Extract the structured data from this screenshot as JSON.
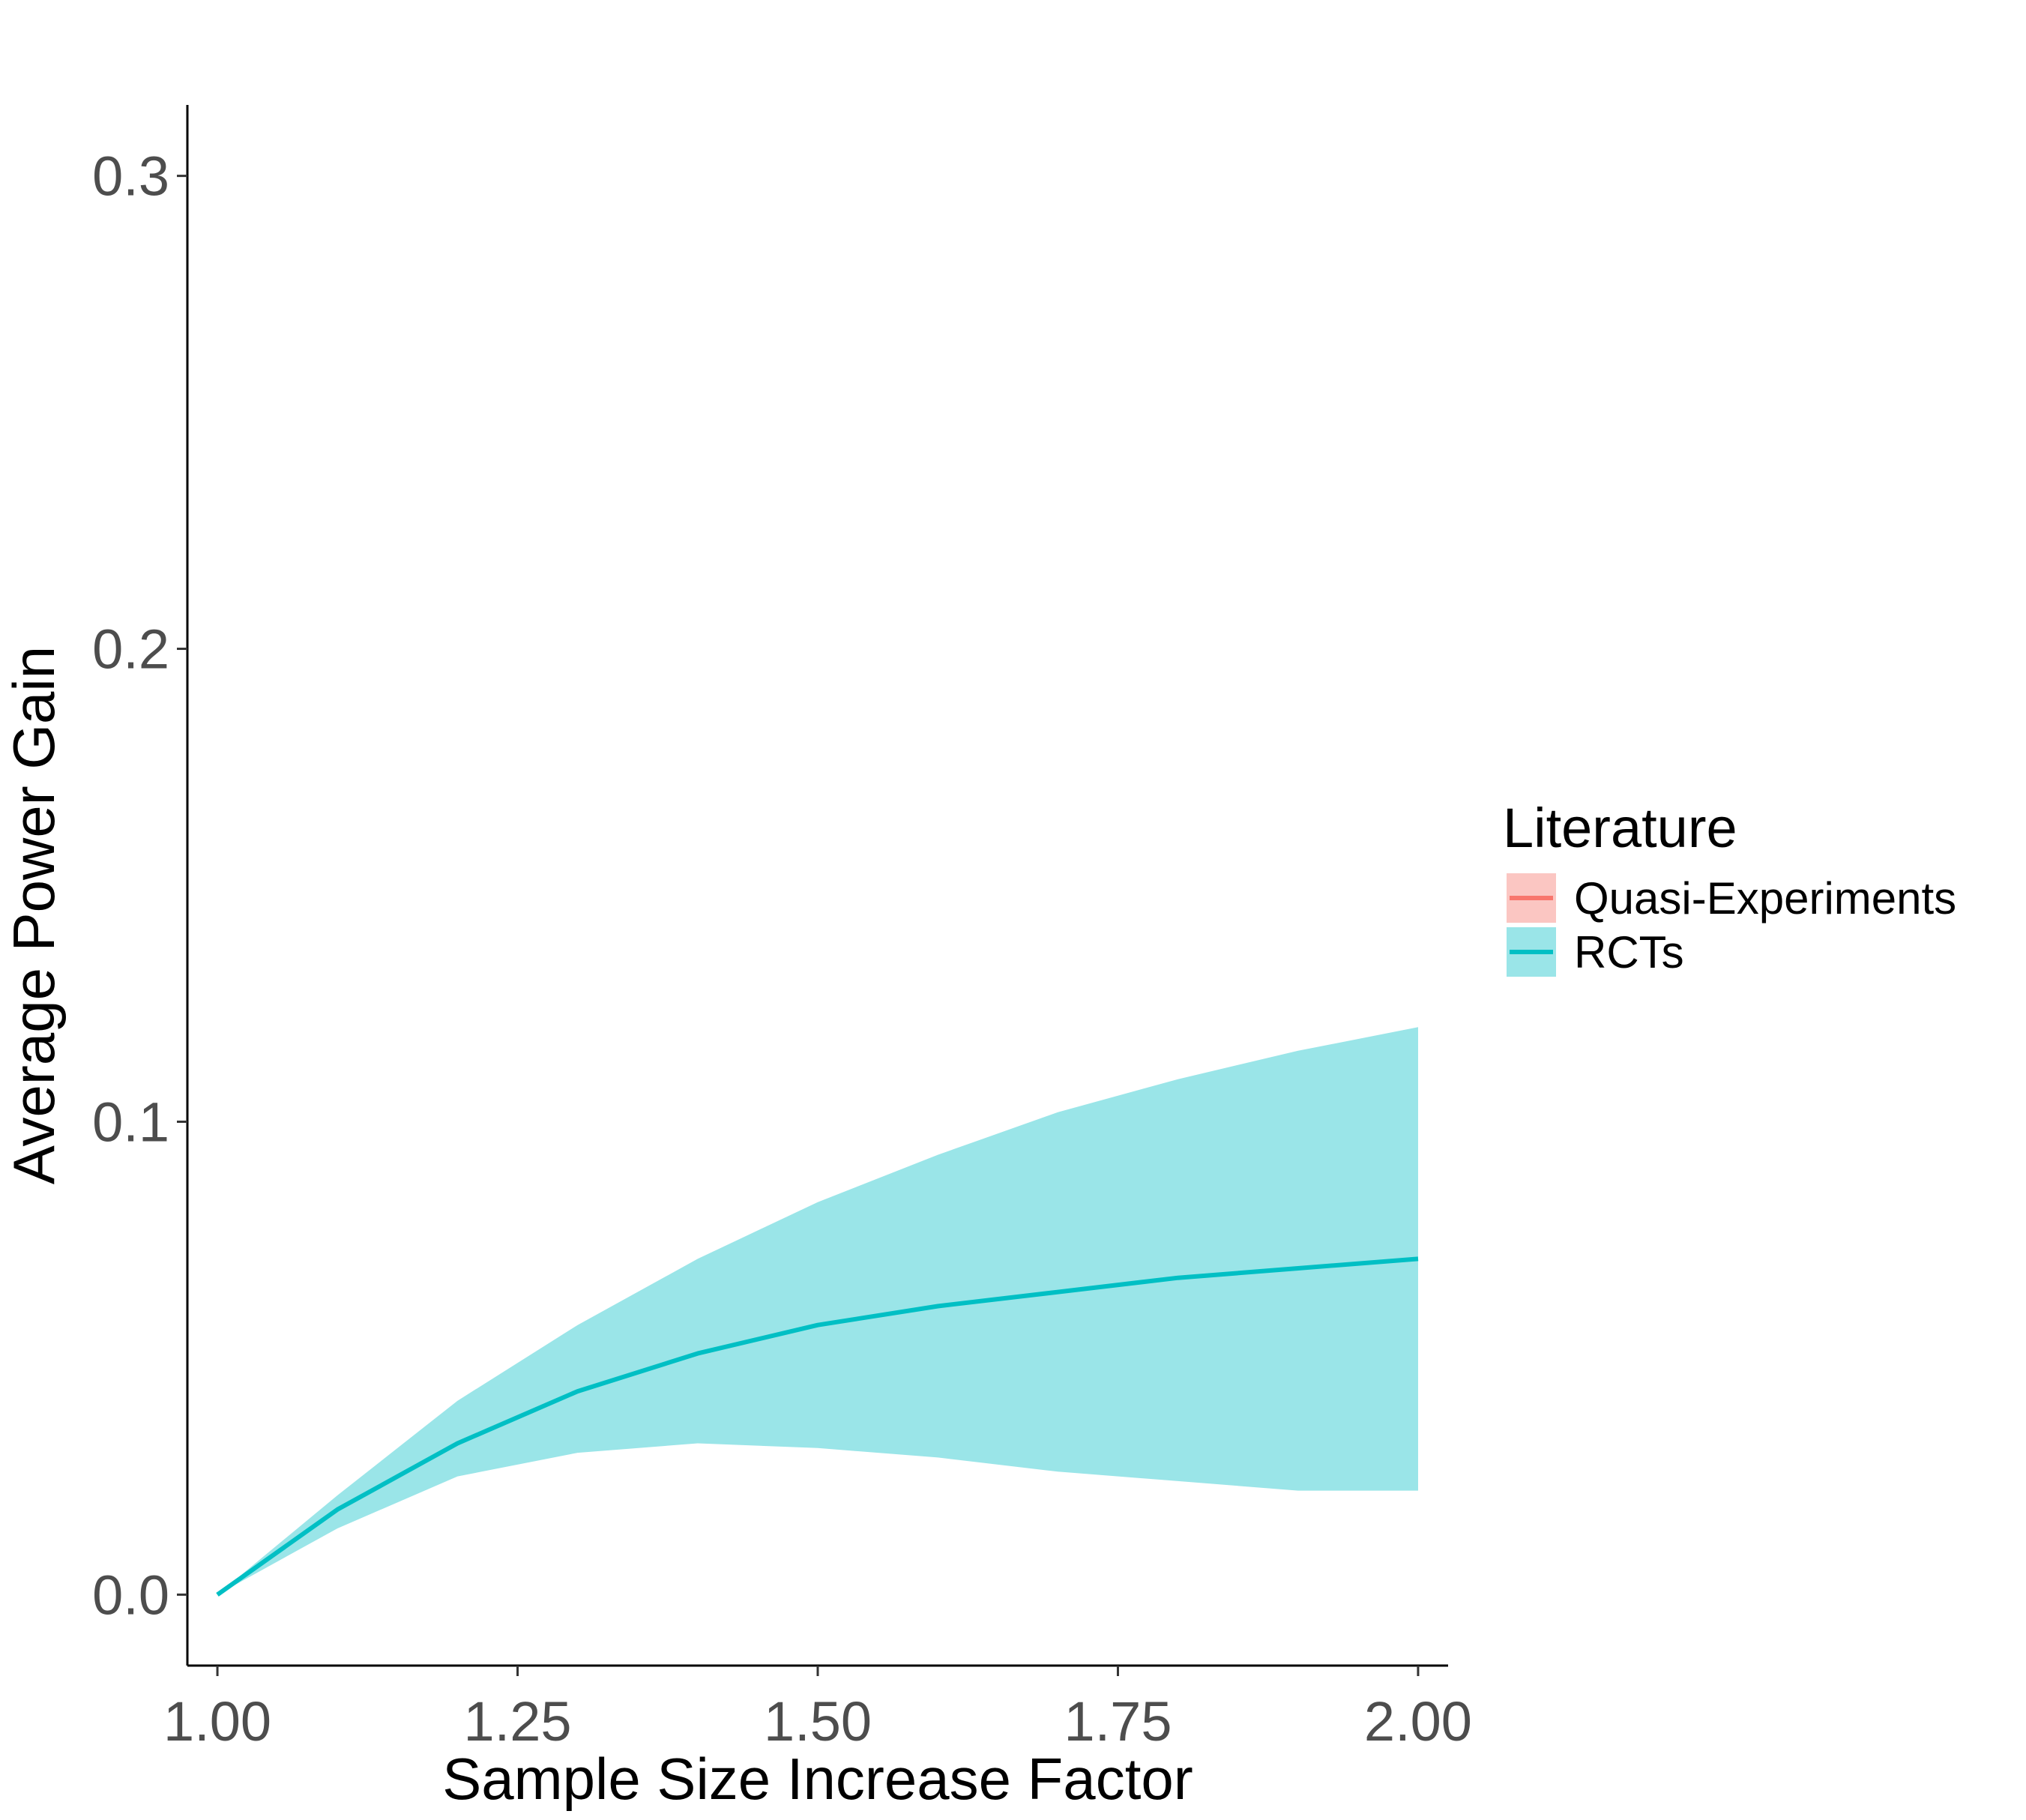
{
  "chart_data": {
    "type": "line",
    "xlabel": "Sample Size Increase Factor",
    "ylabel": "Average Power Gain",
    "xlim": [
      0.975,
      2.025
    ],
    "ylim": [
      -0.015,
      0.315
    ],
    "x_ticks": [
      "1.00",
      "1.25",
      "1.50",
      "1.75",
      "2.00"
    ],
    "y_ticks": [
      "0.0",
      "0.1",
      "0.2",
      "0.3"
    ],
    "grid": false,
    "legend": {
      "title": "Literature",
      "placement": "right",
      "entries": [
        {
          "name": "Quasi-Experiments",
          "line_color": "#F8766D",
          "fill_color": "#FBC6C2"
        },
        {
          "name": "RCTs",
          "line_color": "#00BFC4",
          "fill_color": "#9AE5E8"
        }
      ]
    },
    "series": [
      {
        "name": "RCTs",
        "color": "#00BFC4",
        "fill_color": "#9AE5E8",
        "x": [
          1.0,
          1.1,
          1.2,
          1.3,
          1.4,
          1.5,
          1.6,
          1.7,
          1.8,
          1.9,
          2.0
        ],
        "y": [
          0.0,
          0.018,
          0.032,
          0.043,
          0.051,
          0.057,
          0.061,
          0.064,
          0.067,
          0.069,
          0.071
        ],
        "lower": [
          0.0,
          0.014,
          0.025,
          0.03,
          0.032,
          0.031,
          0.029,
          0.026,
          0.024,
          0.022,
          0.022
        ],
        "upper": [
          0.0,
          0.021,
          0.041,
          0.057,
          0.071,
          0.083,
          0.093,
          0.102,
          0.109,
          0.115,
          0.12
        ]
      }
    ]
  }
}
